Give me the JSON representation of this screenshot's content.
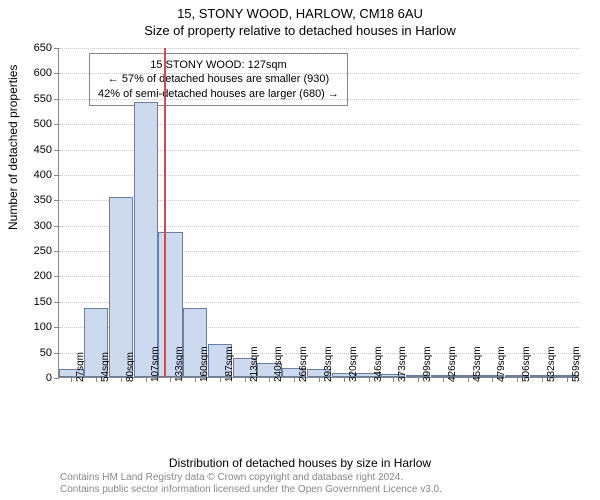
{
  "title_main": "15, STONY WOOD, HARLOW, CM18 6AU",
  "title_sub": "Size of property relative to detached houses in Harlow",
  "ylabel": "Number of detached properties",
  "xlabel": "Distribution of detached houses by size in Harlow",
  "footer_line1": "Contains HM Land Registry data © Crown copyright and database right 2024.",
  "footer_line2": "Contains public sector information licensed under the Open Government Licence v3.0.",
  "annotation": {
    "line1": "15 STONY WOOD: 127sqm",
    "line2": "← 57% of detached houses are smaller (930)",
    "line3": "42% of semi-detached houses are larger (680) →"
  },
  "chart": {
    "type": "histogram",
    "ylim": [
      0,
      650
    ],
    "ytick_step": 50,
    "x_categories": [
      "27sqm",
      "54sqm",
      "80sqm",
      "107sqm",
      "133sqm",
      "160sqm",
      "187sqm",
      "213sqm",
      "240sqm",
      "266sqm",
      "293sqm",
      "320sqm",
      "346sqm",
      "373sqm",
      "399sqm",
      "426sqm",
      "453sqm",
      "479sqm",
      "506sqm",
      "532sqm",
      "559sqm"
    ],
    "values": [
      15,
      135,
      355,
      542,
      285,
      135,
      65,
      38,
      28,
      18,
      15,
      8,
      8,
      5,
      3,
      3,
      2,
      2,
      1,
      1,
      1
    ],
    "bar_fill": "#cdd9ee",
    "bar_border": "#6b7da0",
    "grid_color": "#c8c8c8",
    "background": "#ffffff",
    "marker_value_sqm": 127,
    "marker_color": "#d94a4a",
    "title_fontsize": 13,
    "label_fontsize": 12,
    "tick_fontsize": 11
  }
}
